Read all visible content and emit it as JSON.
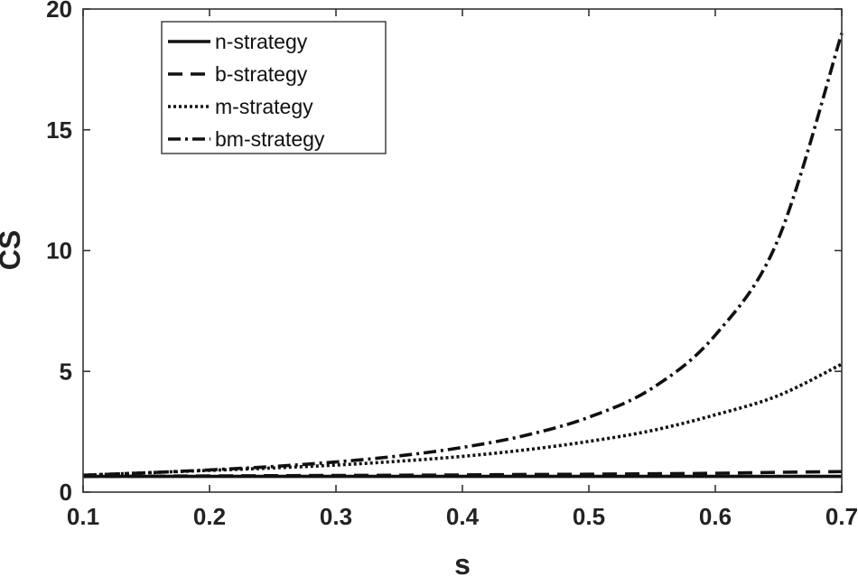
{
  "chart_data": {
    "type": "line",
    "title": "",
    "xlabel": "s",
    "ylabel": "CS",
    "xlim": [
      0.1,
      0.7
    ],
    "ylim": [
      0,
      20
    ],
    "xticks": [
      0.1,
      0.2,
      0.3,
      0.4,
      0.5,
      0.6,
      0.7
    ],
    "xtick_labels": [
      "0.1",
      "0.2",
      "0.3",
      "0.4",
      "0.5",
      "0.6",
      "0.7"
    ],
    "yticks": [
      0,
      5,
      10,
      15,
      20
    ],
    "ytick_labels": [
      "0",
      "5",
      "10",
      "15",
      "20"
    ],
    "grid": false,
    "legend_position": "top-left",
    "x": [
      0.1,
      0.15,
      0.2,
      0.25,
      0.3,
      0.35,
      0.4,
      0.45,
      0.5,
      0.55,
      0.6,
      0.65,
      0.7
    ],
    "series": [
      {
        "name": "n-strategy",
        "style": "solid",
        "color": "#111111",
        "values": [
          0.65,
          0.65,
          0.65,
          0.65,
          0.65,
          0.65,
          0.65,
          0.65,
          0.65,
          0.65,
          0.65,
          0.65,
          0.65
        ]
      },
      {
        "name": "b-strategy",
        "style": "dashed",
        "color": "#111111",
        "values": [
          0.65,
          0.66,
          0.67,
          0.68,
          0.69,
          0.7,
          0.71,
          0.73,
          0.74,
          0.76,
          0.78,
          0.82,
          0.85
        ]
      },
      {
        "name": "m-strategy",
        "style": "dotted",
        "color": "#111111",
        "values": [
          0.7,
          0.8,
          0.9,
          1.0,
          1.12,
          1.28,
          1.48,
          1.75,
          2.1,
          2.55,
          3.2,
          4.0,
          5.3
        ]
      },
      {
        "name": "bm-strategy",
        "style": "dashdot",
        "color": "#111111",
        "values": [
          0.7,
          0.8,
          0.92,
          1.06,
          1.25,
          1.5,
          1.85,
          2.35,
          3.1,
          4.3,
          6.5,
          10.5,
          19.0
        ]
      }
    ]
  }
}
